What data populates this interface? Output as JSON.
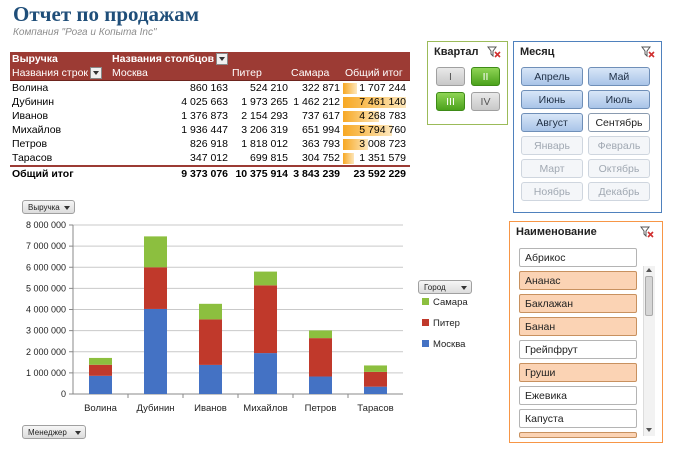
{
  "report": {
    "title": "Отчет по продажам",
    "subtitle": "Компания \"Рога и Копыта Inc\""
  },
  "pivot": {
    "value_field": "Выручка",
    "column_field_label": "Названия столбцов",
    "row_field_label": "Названия строк",
    "columns": [
      "Москва",
      "Питер",
      "Самара",
      "Общий итог"
    ],
    "rows": [
      {
        "name": "Волина",
        "values": [
          "860 163",
          "524 210",
          "322 871",
          "1 707 244"
        ],
        "total_value": 1707244
      },
      {
        "name": "Дубинин",
        "values": [
          "4 025 663",
          "1 973 265",
          "1 462 212",
          "7 461 140"
        ],
        "total_value": 7461140
      },
      {
        "name": "Иванов",
        "values": [
          "1 376 873",
          "2 154 293",
          "737 617",
          "4 268 783"
        ],
        "total_value": 4268783
      },
      {
        "name": "Михайлов",
        "values": [
          "1 936 447",
          "3 206 319",
          "651 994",
          "5 794 760"
        ],
        "total_value": 5794760
      },
      {
        "name": "Петров",
        "values": [
          "826 918",
          "1 818 012",
          "363 793",
          "3 008 723"
        ],
        "total_value": 3008723
      },
      {
        "name": "Тарасов",
        "values": [
          "347 012",
          "699 815",
          "304 752",
          "1 351 579"
        ],
        "total_value": 1351579
      }
    ],
    "total_row": {
      "name": "Общий итог",
      "values": [
        "9 373 076",
        "10 375 914",
        "3 843 239",
        "23 592 229"
      ]
    },
    "databar_color": "#f7a823"
  },
  "slicer_quarter": {
    "header": "Квартал",
    "items": [
      {
        "label": "I",
        "state": "off"
      },
      {
        "label": "II",
        "state": "on"
      },
      {
        "label": "III",
        "state": "on"
      },
      {
        "label": "IV",
        "state": "off"
      }
    ]
  },
  "slicer_month": {
    "header": "Месяц",
    "items": [
      {
        "label": "Апрель",
        "state": "on"
      },
      {
        "label": "Май",
        "state": "on"
      },
      {
        "label": "Июнь",
        "state": "on"
      },
      {
        "label": "Июль",
        "state": "on"
      },
      {
        "label": "Август",
        "state": "on"
      },
      {
        "label": "Сентябрь",
        "state": "plain"
      },
      {
        "label": "Январь",
        "state": "off"
      },
      {
        "label": "Февраль",
        "state": "off"
      },
      {
        "label": "Март",
        "state": "off"
      },
      {
        "label": "Октябрь",
        "state": "off"
      },
      {
        "label": "Ноябрь",
        "state": "off"
      },
      {
        "label": "Декабрь",
        "state": "off"
      }
    ]
  },
  "slicer_name": {
    "header": "Наименование",
    "items": [
      {
        "label": "Абрикос",
        "selected": false
      },
      {
        "label": "Ананас",
        "selected": true
      },
      {
        "label": "Баклажан",
        "selected": true
      },
      {
        "label": "Банан",
        "selected": true
      },
      {
        "label": "Грейпфрут",
        "selected": false
      },
      {
        "label": "Груши",
        "selected": true
      },
      {
        "label": "Ежевика",
        "selected": false
      },
      {
        "label": "Капуста",
        "selected": false
      }
    ]
  },
  "chart_buttons": {
    "value": "Выручка",
    "legend_field": "Город",
    "axis_field": "Менеджер"
  },
  "colors": {
    "header_bg": "#9c3b34",
    "moskva": "#4472c4",
    "piter": "#c0392b",
    "samara": "#8cbf3f",
    "quarter_border": "#9bbb59",
    "month_border": "#4f81bd",
    "name_border": "#f79646"
  },
  "chart_data": {
    "type": "bar",
    "stacked": true,
    "categories": [
      "Волина",
      "Дубинин",
      "Иванов",
      "Михайлов",
      "Петров",
      "Тарасов"
    ],
    "series": [
      {
        "name": "Москва",
        "values": [
          860163,
          4025663,
          1376873,
          1936447,
          826918,
          347012
        ]
      },
      {
        "name": "Питер",
        "values": [
          524210,
          1973265,
          2154293,
          3206319,
          1818012,
          699815
        ]
      },
      {
        "name": "Самара",
        "values": [
          322871,
          1462212,
          737617,
          651994,
          363793,
          304752
        ]
      }
    ],
    "ylim": [
      0,
      8000000
    ],
    "yticks": [
      0,
      1000000,
      2000000,
      3000000,
      4000000,
      5000000,
      6000000,
      7000000,
      8000000
    ],
    "ytick_labels": [
      "0",
      "1 000 000",
      "2 000 000",
      "3 000 000",
      "4 000 000",
      "5 000 000",
      "6 000 000",
      "7 000 000",
      "8 000 000"
    ],
    "legend": [
      "Самара",
      "Питер",
      "Москва"
    ],
    "legend_position": "right",
    "grid": true
  }
}
